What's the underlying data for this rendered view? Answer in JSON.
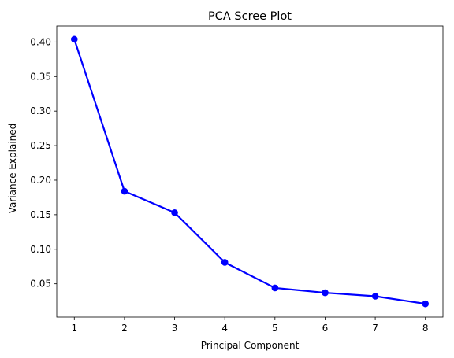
{
  "chart_data": {
    "type": "line",
    "title": "PCA Scree Plot",
    "xlabel": "Principal Component",
    "ylabel": "Variance Explained",
    "x": [
      1,
      2,
      3,
      4,
      5,
      6,
      7,
      8
    ],
    "series": [
      {
        "values": [
          0.404,
          0.184,
          0.153,
          0.081,
          0.044,
          0.037,
          0.032,
          0.021
        ],
        "color": "#0000ff",
        "marker": "circle"
      }
    ],
    "xlim": [
      0.65,
      8.35
    ],
    "ylim": [
      0.0018,
      0.4232
    ],
    "xticks": [
      "1",
      "2",
      "3",
      "4",
      "5",
      "6",
      "7",
      "8"
    ],
    "yticks": [
      "0.05",
      "0.10",
      "0.15",
      "0.20",
      "0.25",
      "0.30",
      "0.35",
      "0.40"
    ],
    "grid": false,
    "legend": "none"
  }
}
